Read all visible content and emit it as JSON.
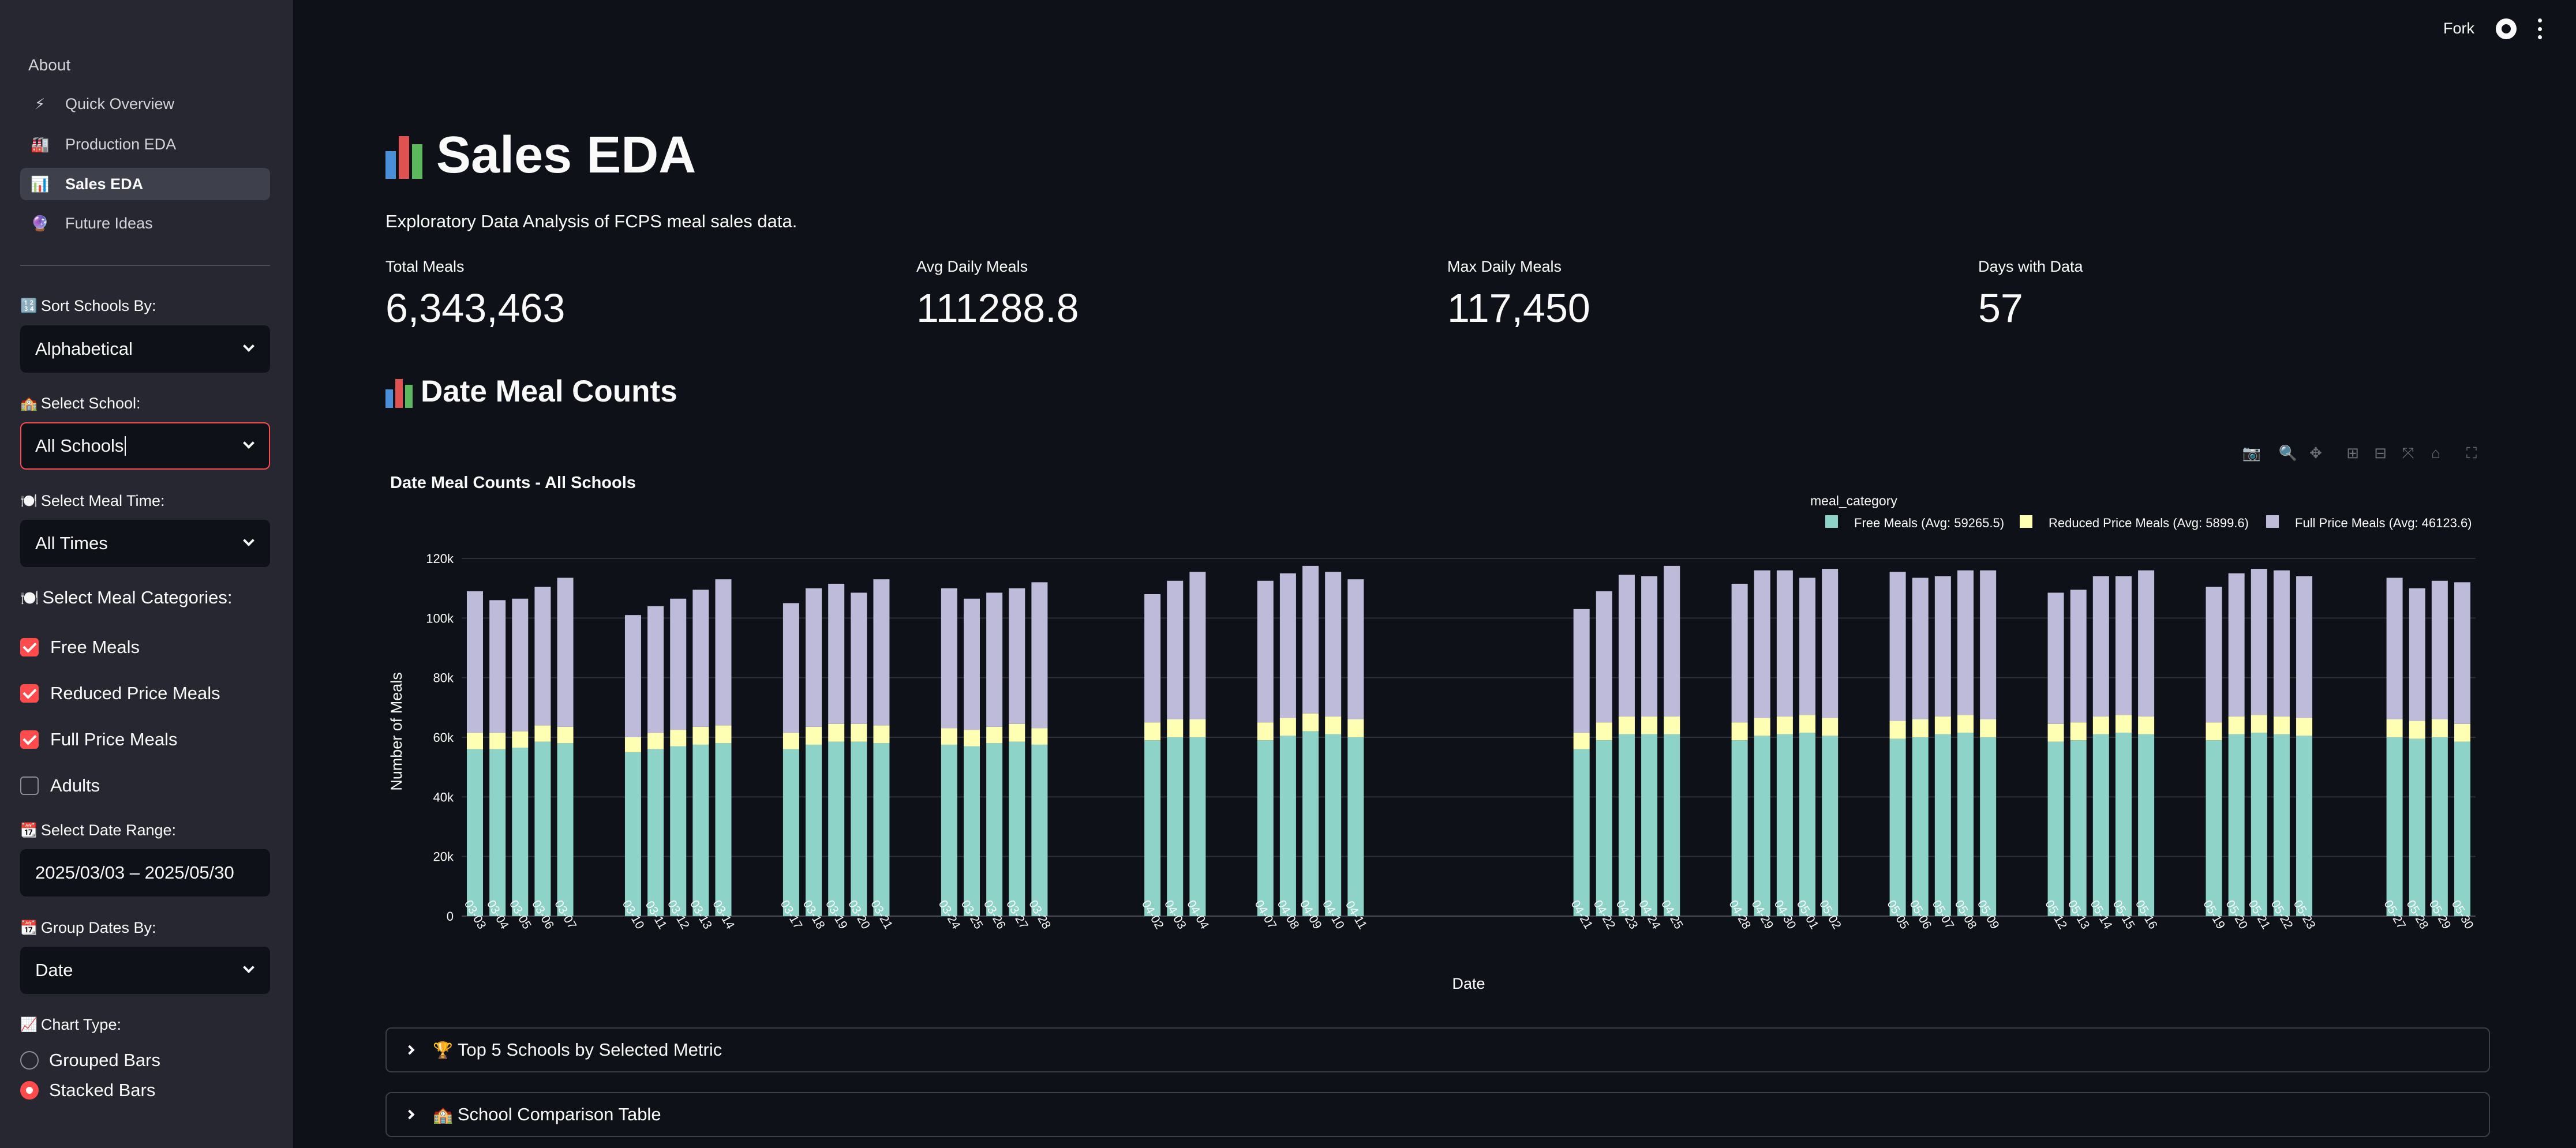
{
  "sidebar": {
    "nav_header": "About",
    "nav_items": [
      {
        "label": "Quick Overview",
        "icon": "lightning-icon",
        "glyph": "⚡",
        "active": false
      },
      {
        "label": "Production EDA",
        "icon": "factory-icon",
        "glyph": "🏭",
        "active": false
      },
      {
        "label": "Sales EDA",
        "icon": "bar-chart-icon",
        "glyph": "📊",
        "active": true
      },
      {
        "label": "Future Ideas",
        "icon": "crystal-ball-icon",
        "glyph": "🔮",
        "active": false
      }
    ],
    "sort_label": "Sort Schools By:",
    "sort_value": "Alphabetical",
    "school_label": "Select School:",
    "school_value": "All Schools",
    "meal_time_label": "Select Meal Time:",
    "meal_time_value": "All Times",
    "categories_label": "Select Meal Categories:",
    "categories": [
      {
        "label": "Free Meals",
        "checked": true
      },
      {
        "label": "Reduced Price Meals",
        "checked": true
      },
      {
        "label": "Full Price Meals",
        "checked": true
      },
      {
        "label": "Adults",
        "checked": false
      }
    ],
    "date_range_label": "Select Date Range:",
    "date_range_value": "2025/03/03 – 2025/05/30",
    "group_dates_label": "Group Dates By:",
    "group_dates_value": "Date",
    "chart_type_label": "Chart Type:",
    "chart_types": [
      {
        "label": "Grouped Bars",
        "selected": false
      },
      {
        "label": "Stacked Bars",
        "selected": true
      }
    ]
  },
  "header": {
    "fork_label": "Fork"
  },
  "main": {
    "title": "Sales EDA",
    "subtitle": "Exploratory Data Analysis of FCPS meal sales data.",
    "metrics": [
      {
        "label": "Total Meals",
        "value": "6,343,463"
      },
      {
        "label": "Avg Daily Meals",
        "value": "111288.8"
      },
      {
        "label": "Max Daily Meals",
        "value": "117,450"
      },
      {
        "label": "Days with Data",
        "value": "57"
      }
    ],
    "section_title": "Date Meal Counts",
    "expanders": [
      {
        "label": "Top 5 Schools by Selected Metric",
        "icon": "trophy-icon",
        "glyph": "🏆"
      },
      {
        "label": "School Comparison Table",
        "icon": "school-icon",
        "glyph": "🏫"
      }
    ]
  },
  "colors": {
    "free": "#8dd3c7",
    "reduced": "#ffffb3",
    "full": "#bebada",
    "accent": "#ff4b4b"
  },
  "chart_data": {
    "type": "bar",
    "stacked": true,
    "title": "Date Meal Counts - All Schools",
    "xlabel": "Date",
    "ylabel": "Number of Meals",
    "ylim": [
      0,
      120000
    ],
    "yticks": [
      "0",
      "20k",
      "40k",
      "60k",
      "80k",
      "100k",
      "120k"
    ],
    "legend_title": "meal_category",
    "legend_position": "top-right",
    "grid": true,
    "categories": [
      "03-03",
      "03-04",
      "03-05",
      "03-06",
      "03-07",
      "03-10",
      "03-11",
      "03-12",
      "03-13",
      "03-14",
      "03-17",
      "03-18",
      "03-19",
      "03-20",
      "03-21",
      "03-24",
      "03-25",
      "03-26",
      "03-27",
      "03-28",
      "04-02",
      "04-03",
      "04-04",
      "04-07",
      "04-08",
      "04-09",
      "04-10",
      "04-11",
      "04-21",
      "04-22",
      "04-23",
      "04-24",
      "04-25",
      "04-28",
      "04-29",
      "04-30",
      "05-01",
      "05-02",
      "05-05",
      "05-06",
      "05-07",
      "05-08",
      "05-09",
      "05-12",
      "05-13",
      "05-14",
      "05-15",
      "05-16",
      "05-19",
      "05-20",
      "05-21",
      "05-22",
      "05-23",
      "05-27",
      "05-28",
      "05-29",
      "05-30"
    ],
    "series": [
      {
        "name": "Free Meals (Avg: 59265.5)",
        "color": "#8dd3c7",
        "values": [
          56000,
          56000,
          56500,
          58500,
          58000,
          55000,
          56000,
          57000,
          57500,
          58000,
          56000,
          57500,
          58500,
          58500,
          58000,
          57500,
          57000,
          58000,
          58500,
          57500,
          59000,
          60000,
          60000,
          59000,
          60500,
          62000,
          61000,
          60000,
          56000,
          59000,
          61000,
          61000,
          61000,
          59000,
          60500,
          61000,
          61500,
          60500,
          59500,
          60000,
          61000,
          61500,
          60000,
          58500,
          59000,
          61000,
          61500,
          61000,
          59000,
          61000,
          61500,
          61000,
          60500,
          60000,
          59500,
          60000,
          58500
        ]
      },
      {
        "name": "Reduced Price Meals (Avg: 5899.6)",
        "color": "#ffffb3",
        "values": [
          5500,
          5500,
          5500,
          5500,
          5500,
          5000,
          5500,
          5500,
          6000,
          6000,
          5500,
          6000,
          6000,
          6000,
          6000,
          5500,
          5500,
          5500,
          6000,
          5500,
          6000,
          6000,
          6000,
          6000,
          6000,
          6000,
          6000,
          6000,
          5500,
          6000,
          6000,
          6000,
          6000,
          6000,
          6000,
          6000,
          6000,
          6000,
          6000,
          6000,
          6000,
          6000,
          6000,
          6000,
          6000,
          6000,
          6000,
          6000,
          6000,
          6000,
          6000,
          6000,
          6000,
          6000,
          6000,
          6000,
          6000
        ]
      },
      {
        "name": "Full Price Meals (Avg: 46123.6)",
        "color": "#bebada",
        "values": [
          47500,
          44500,
          44500,
          46500,
          50000,
          41000,
          42500,
          44000,
          46000,
          49000,
          43500,
          46500,
          47000,
          44000,
          49000,
          47000,
          44000,
          45000,
          45500,
          49000,
          43000,
          46500,
          49500,
          47500,
          48500,
          49500,
          48500,
          47000,
          41500,
          44000,
          47500,
          47000,
          50500,
          46500,
          49500,
          49000,
          46000,
          50000,
          50000,
          47500,
          47000,
          48500,
          50000,
          44000,
          44500,
          47000,
          46500,
          49000,
          45500,
          48000,
          49000,
          49000,
          47500,
          47500,
          44500,
          46500,
          47500
        ]
      }
    ]
  }
}
